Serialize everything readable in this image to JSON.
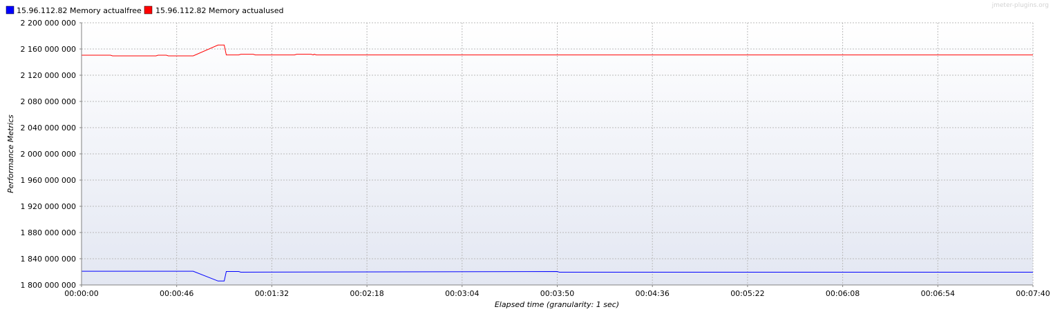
{
  "watermark": "jmeter-plugins.org",
  "chart_data": {
    "type": "line",
    "xlabel": "Elapsed time (granularity: 1 sec)",
    "ylabel": "Performance Metrics",
    "xlim": [
      0,
      460
    ],
    "ylim": [
      1800000000,
      2200000000
    ],
    "x_ticks": [
      {
        "value": 0,
        "label": "00:00:00"
      },
      {
        "value": 46,
        "label": "00:00:46"
      },
      {
        "value": 92,
        "label": "00:01:32"
      },
      {
        "value": 138,
        "label": "00:02:18"
      },
      {
        "value": 184,
        "label": "00:03:04"
      },
      {
        "value": 230,
        "label": "00:03:50"
      },
      {
        "value": 276,
        "label": "00:04:36"
      },
      {
        "value": 322,
        "label": "00:05:22"
      },
      {
        "value": 368,
        "label": "00:06:08"
      },
      {
        "value": 414,
        "label": "00:06:54"
      },
      {
        "value": 460,
        "label": "00:07:40"
      }
    ],
    "y_ticks": [
      {
        "value": 1800000000,
        "label": "1 800 000 000"
      },
      {
        "value": 1840000000,
        "label": "1 840 000 000"
      },
      {
        "value": 1880000000,
        "label": "1 880 000 000"
      },
      {
        "value": 1920000000,
        "label": "1 920 000 000"
      },
      {
        "value": 1960000000,
        "label": "1 960 000 000"
      },
      {
        "value": 2000000000,
        "label": "2 000 000 000"
      },
      {
        "value": 2040000000,
        "label": "2 040 000 000"
      },
      {
        "value": 2080000000,
        "label": "2 080 000 000"
      },
      {
        "value": 2120000000,
        "label": "2 120 000 000"
      },
      {
        "value": 2160000000,
        "label": "2 160 000 000"
      },
      {
        "value": 2200000000,
        "label": "2 200 000 000"
      }
    ],
    "grid": true,
    "legend_position": "top-left",
    "series": [
      {
        "name": "15.96.112.82 Memory actualfree",
        "color": "#0000ff",
        "x": [
          0,
          54,
          66,
          69,
          70,
          76,
          77,
          230,
          231,
          460
        ],
        "y": [
          1821000000,
          1821000000,
          1806000000,
          1806000000,
          1820500000,
          1820500000,
          1819500000,
          1820500000,
          1819500000,
          1819500000
        ]
      },
      {
        "name": "15.96.112.82 Memory actualused",
        "color": "#ff0000",
        "x": [
          0,
          14,
          15,
          36,
          37,
          41,
          42,
          54,
          66,
          69,
          70,
          76,
          77,
          83,
          84,
          103,
          104,
          111,
          112,
          112.5,
          113.5,
          460
        ],
        "y": [
          2150500000,
          2150500000,
          2149500000,
          2149500000,
          2150500000,
          2150500000,
          2149500000,
          2149500000,
          2166000000,
          2166000000,
          2151000000,
          2151000000,
          2152000000,
          2152000000,
          2151000000,
          2151000000,
          2152000000,
          2152000000,
          2151000000,
          2152000000,
          2151000000,
          2151000000
        ]
      }
    ]
  }
}
